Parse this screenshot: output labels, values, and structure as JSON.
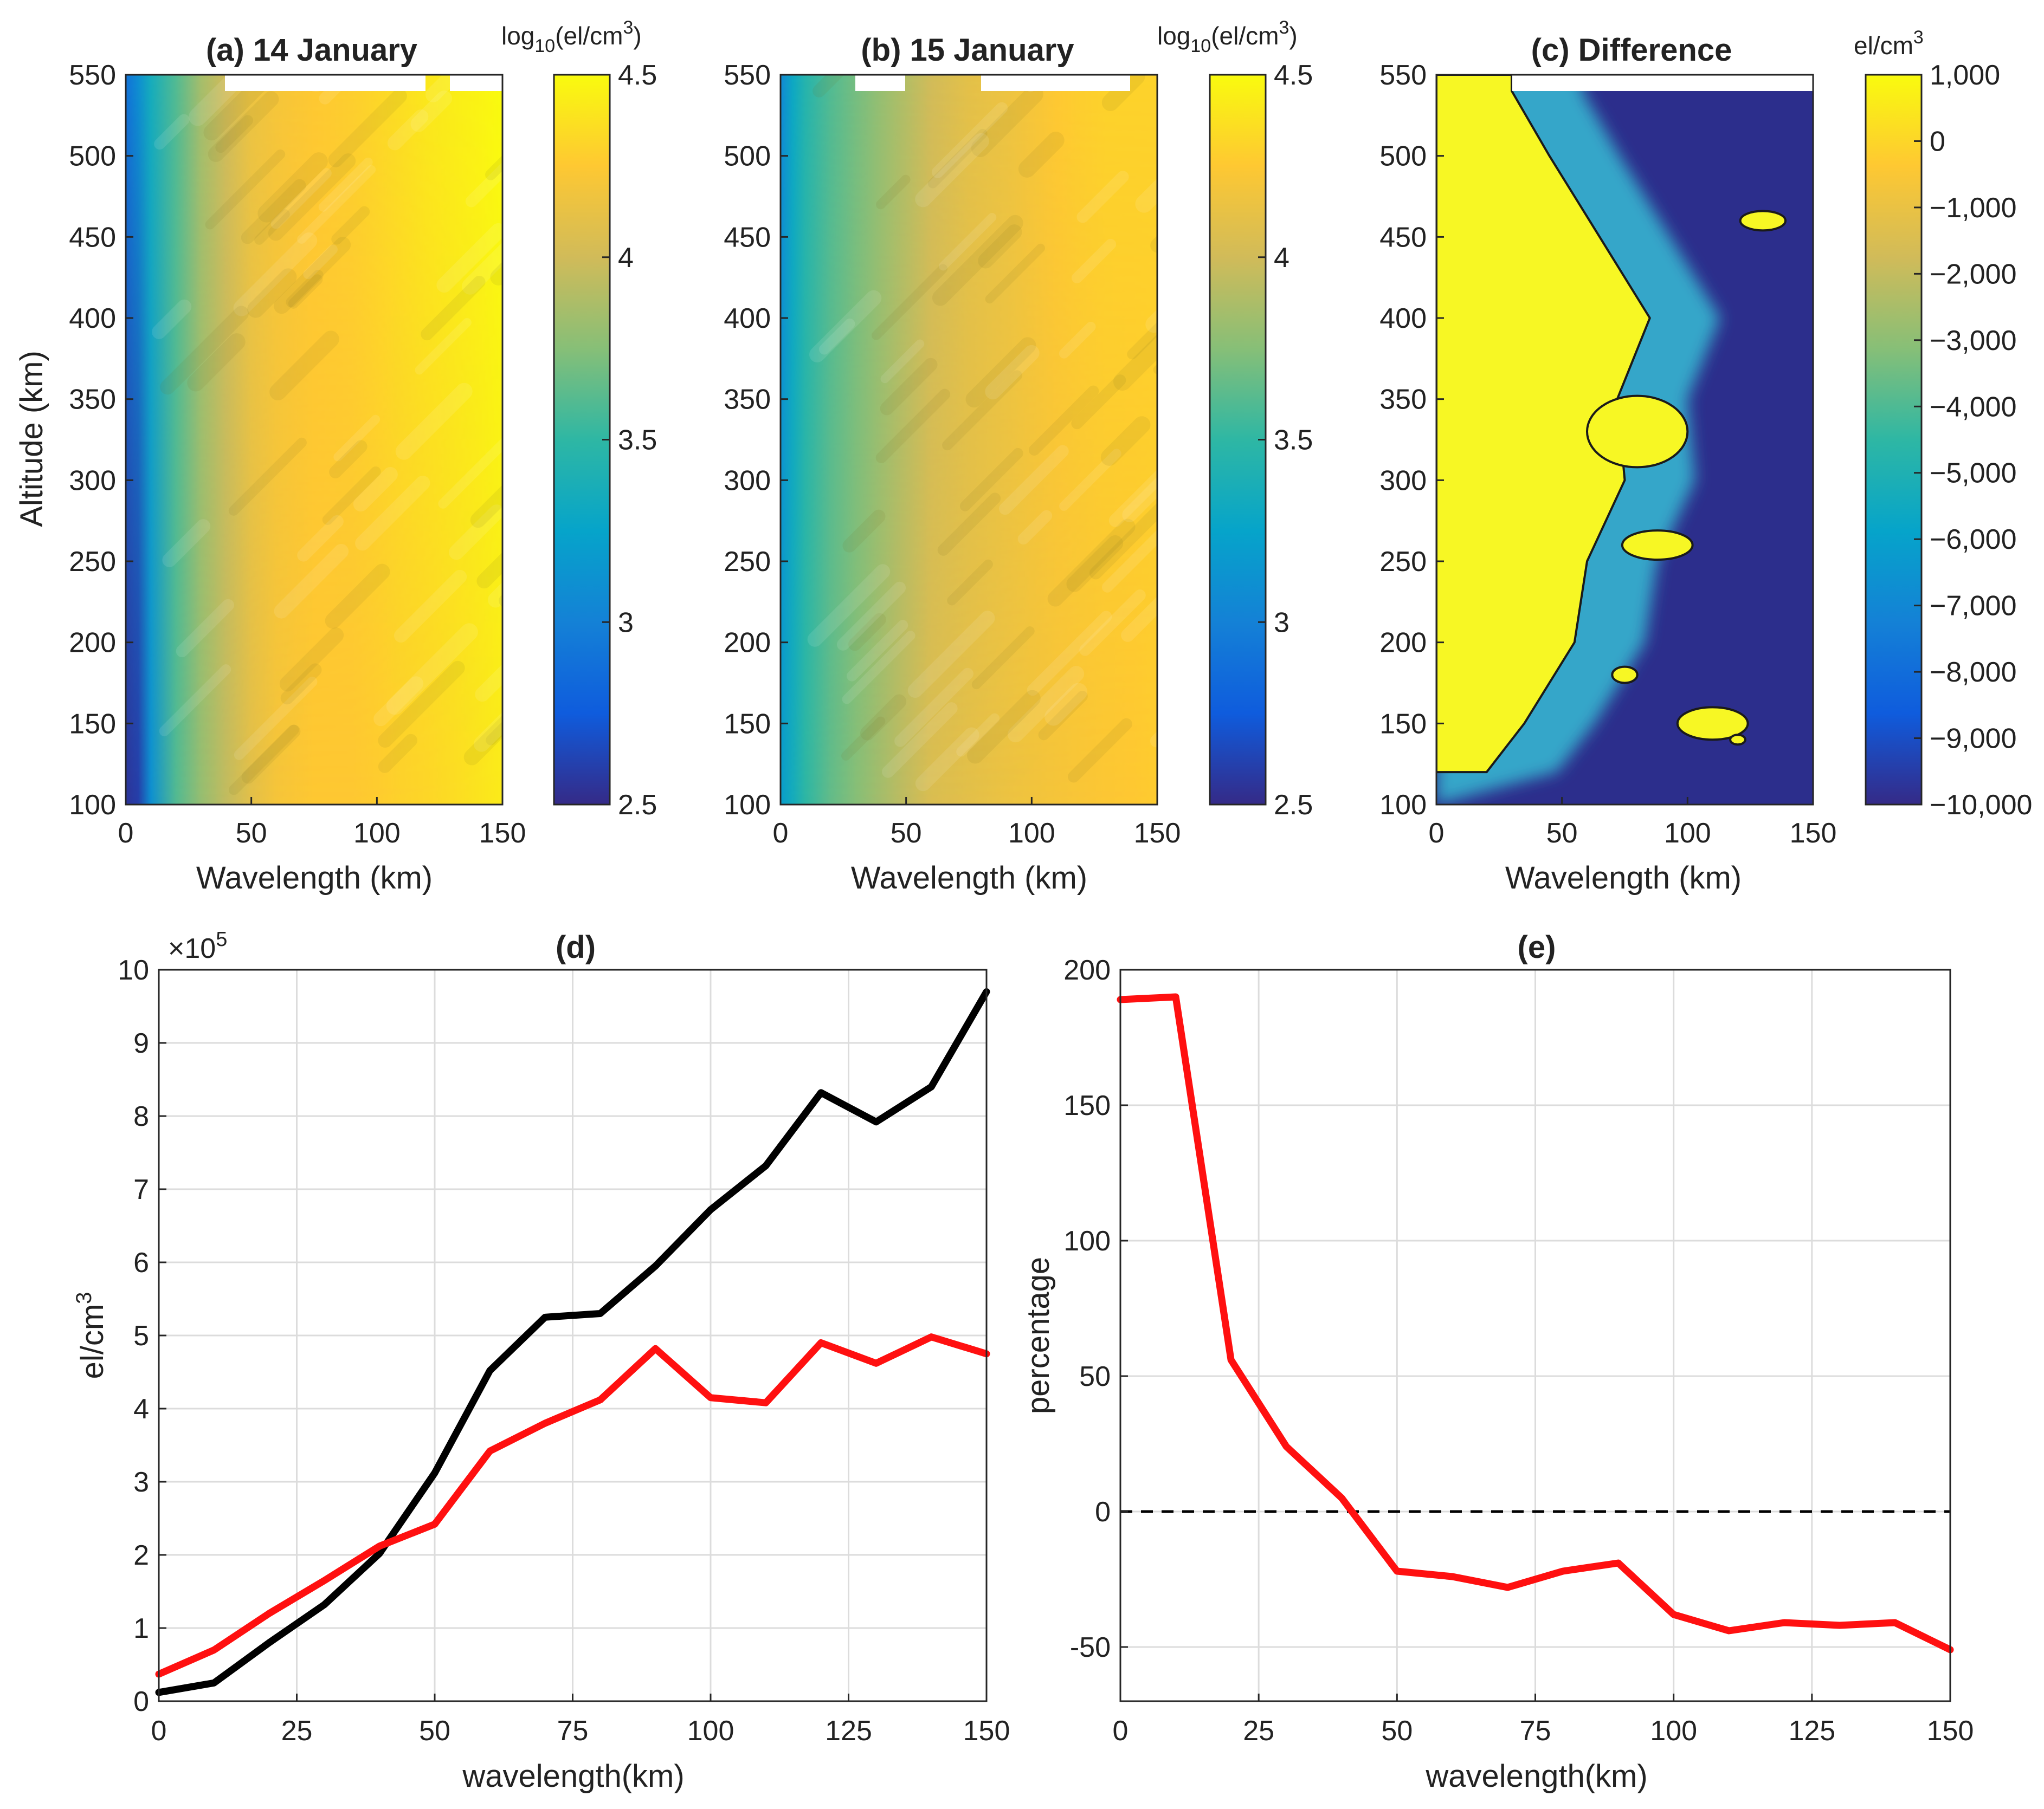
{
  "chart_data": [
    {
      "id": "a",
      "type": "heatmap",
      "title": "(a) 14 January",
      "xlabel": "Wavelength (km)",
      "ylabel": "Altitude (km)",
      "xlim": [
        0,
        150
      ],
      "ylim": [
        100,
        550
      ],
      "xticks": [
        "0",
        "50",
        "100",
        "150"
      ],
      "yticks": [
        "100",
        "150",
        "200",
        "250",
        "300",
        "350",
        "400",
        "450",
        "500",
        "550"
      ],
      "colorbar": {
        "title": "log10(el/cm3)",
        "title_parts": {
          "base": "log",
          "sub": "10",
          "mid": "(el/cm",
          "sup": "3",
          "end": ")"
        },
        "range": [
          2.5,
          4.5
        ],
        "ticks": [
          "2.5",
          "3",
          "3.5",
          "4",
          "4.5"
        ]
      },
      "approx_profile": {
        "wavelength_km": [
          0,
          5,
          10,
          20,
          30,
          40,
          50,
          60,
          75,
          90,
          100,
          110,
          120,
          130,
          140,
          150
        ],
        "value_at_low_altitude": [
          2.55,
          2.6,
          3.1,
          3.6,
          3.8,
          3.95,
          4.1,
          4.2,
          4.25,
          4.25,
          4.27,
          4.3,
          4.32,
          4.35,
          4.38,
          4.42
        ],
        "value_at_high_altitude": [
          2.9,
          3.1,
          3.35,
          3.6,
          3.85,
          4.0,
          4.15,
          4.2,
          4.25,
          4.28,
          4.32,
          4.36,
          4.4,
          4.43,
          4.46,
          4.5
        ]
      }
    },
    {
      "id": "b",
      "type": "heatmap",
      "title": "(b) 15 January",
      "xlabel": "Wavelength (km)",
      "ylabel": "",
      "xlim": [
        0,
        150
      ],
      "ylim": [
        100,
        550
      ],
      "xticks": [
        "0",
        "50",
        "100",
        "150"
      ],
      "yticks": [
        "100",
        "150",
        "200",
        "250",
        "300",
        "350",
        "400",
        "450",
        "500",
        "550"
      ],
      "colorbar": {
        "title": "log10(el/cm3)",
        "title_parts": {
          "base": "log",
          "sub": "10",
          "mid": "(el/cm",
          "sup": "3",
          "end": ")"
        },
        "range": [
          2.5,
          4.5
        ],
        "ticks": [
          "2.5",
          "3",
          "3.5",
          "4",
          "4.5"
        ]
      },
      "approx_profile": {
        "wavelength_km": [
          0,
          5,
          10,
          20,
          30,
          40,
          50,
          60,
          75,
          90,
          100,
          110,
          120,
          130,
          140,
          150
        ],
        "value_at_low_altitude": [
          3.2,
          3.35,
          3.5,
          3.65,
          3.75,
          3.85,
          3.95,
          4.05,
          4.1,
          4.15,
          4.18,
          4.2,
          4.22,
          4.24,
          4.25,
          4.27
        ],
        "value_at_high_altitude": [
          3.05,
          3.3,
          3.45,
          3.6,
          3.7,
          3.8,
          3.9,
          4.0,
          4.1,
          4.15,
          4.2,
          4.25,
          4.28,
          4.3,
          4.3,
          4.3
        ]
      }
    },
    {
      "id": "c",
      "type": "heatmap",
      "title": "(c) Difference",
      "xlabel": "Wavelength (km)",
      "ylabel": "",
      "xlim": [
        0,
        150
      ],
      "ylim": [
        100,
        550
      ],
      "xticks": [
        "0",
        "50",
        "100",
        "150"
      ],
      "yticks": [
        "100",
        "150",
        "200",
        "250",
        "300",
        "350",
        "400",
        "450",
        "500",
        "550"
      ],
      "colorbar": {
        "title": "el/cm3",
        "title_parts": {
          "base": "el/cm",
          "sup": "3"
        },
        "range": [
          -10000,
          1000
        ],
        "ticks": [
          "1,000",
          "0",
          "−1,000",
          "−2,000",
          "−3,000",
          "−4,000",
          "−5,000",
          "−6,000",
          "−7,000",
          "−8,000",
          "−9,000",
          "−10,000"
        ],
        "tick_values": [
          1000,
          0,
          -1000,
          -2000,
          -3000,
          -4000,
          -5000,
          -6000,
          -7000,
          -8000,
          -9000,
          -10000
        ]
      },
      "zero_contour_wavelength_km": {
        "altitude_km": [
          120,
          150,
          200,
          250,
          300,
          350,
          400,
          450,
          500,
          540
        ],
        "boundary_km": [
          20,
          35,
          55,
          60,
          75,
          72,
          85,
          65,
          45,
          30
        ]
      }
    },
    {
      "id": "d",
      "type": "line",
      "title": "(d)",
      "xlabel": "wavelength(km)",
      "ylabel": "el/cm3",
      "ylabel_parts": {
        "base": "el/cm",
        "sup": "3"
      },
      "exponent_label": {
        "base": "×10",
        "sup": "5"
      },
      "xlim": [
        0,
        150
      ],
      "ylim": [
        0,
        10
      ],
      "xticks": [
        "0",
        "25",
        "50",
        "75",
        "100",
        "125",
        "150"
      ],
      "yticks": [
        "0",
        "1",
        "2",
        "3",
        "4",
        "5",
        "6",
        "7",
        "8",
        "9",
        "10"
      ],
      "grid": true,
      "x": [
        0,
        10,
        20,
        30,
        40,
        50,
        60,
        70,
        80,
        90,
        100,
        110,
        120,
        130,
        140,
        150
      ],
      "series": [
        {
          "name": "black",
          "color": "#000000",
          "values": [
            0.12,
            0.25,
            0.8,
            1.32,
            2.02,
            3.12,
            4.52,
            5.25,
            5.3,
            5.95,
            6.72,
            7.32,
            8.32,
            7.92,
            8.4,
            9.7
          ]
        },
        {
          "name": "red",
          "color": "#ff1010",
          "values": [
            0.37,
            0.7,
            1.2,
            1.65,
            2.12,
            2.42,
            3.42,
            3.8,
            4.12,
            4.82,
            4.15,
            4.08,
            4.9,
            4.62,
            4.98,
            4.75
          ]
        }
      ]
    },
    {
      "id": "e",
      "type": "line",
      "title": "(e)",
      "xlabel": "wavelength(km)",
      "ylabel": "percentage",
      "xlim": [
        0,
        150
      ],
      "ylim": [
        -70,
        200
      ],
      "xticks": [
        "0",
        "25",
        "50",
        "75",
        "100",
        "125",
        "150"
      ],
      "yticks": [
        "-50",
        "0",
        "50",
        "100",
        "150",
        "200"
      ],
      "ytick_values": [
        -50,
        0,
        50,
        100,
        150,
        200
      ],
      "grid": true,
      "reference_line": {
        "y": 0,
        "style": "dashed",
        "color": "#000000"
      },
      "x": [
        0,
        10,
        20,
        30,
        40,
        50,
        60,
        70,
        80,
        90,
        100,
        110,
        120,
        130,
        140,
        150
      ],
      "series": [
        {
          "name": "red",
          "color": "#ff1010",
          "values": [
            189,
            190,
            56,
            24,
            5,
            -22,
            -24,
            -28,
            -22,
            -19,
            -38,
            -44,
            -41,
            -42,
            -41,
            -51
          ]
        }
      ]
    }
  ]
}
